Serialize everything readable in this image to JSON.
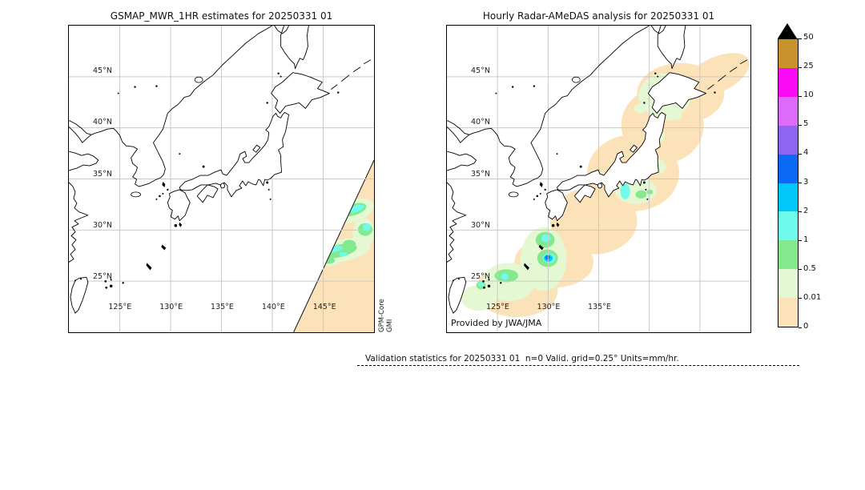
{
  "left_panel": {
    "title": "GSMAP_MWR_1HR estimates for 20250331 01",
    "lat_labels": [
      "45°N",
      "40°N",
      "35°N",
      "30°N",
      "25°N"
    ],
    "lon_labels": [
      "125°E",
      "130°E",
      "135°E",
      "140°E",
      "145°E"
    ],
    "annotation_lines": [
      "GPM-Core",
      "GMI"
    ]
  },
  "right_panel": {
    "title": "Hourly Radar-AMeDAS analysis for 20250331 01",
    "lat_labels": [
      "45°N",
      "40°N",
      "35°N",
      "30°N",
      "25°N"
    ],
    "lon_labels": [
      "125°E",
      "130°E",
      "135°E"
    ],
    "annotation": "Provided by JWA/JMA"
  },
  "colorbar": {
    "units_implied": "mm/hr",
    "tick_labels_top_to_bottom": [
      "50",
      "25",
      "10",
      "5",
      "4",
      "3",
      "2",
      "1",
      "0.5",
      "0.01",
      "0"
    ],
    "segment_colors_top_to_bottom": [
      "#C8922D",
      "#FA0AF5",
      "#DB6BF8",
      "#8E65F0",
      "#0A69F5",
      "#00C8FA",
      "#6EFBEB",
      "#82EA8C",
      "#E4F8D3",
      "#FBE2B8"
    ],
    "overflow_color": "#000000"
  },
  "footer": {
    "text": "Validation statistics for 20250331 01  n=0 Valid. grid=0.25° Units=mm/hr."
  },
  "colors": {
    "grid": "#c9c9c9",
    "coastline": "#000000",
    "rain_trace": "#FBE2B8",
    "rain_light": "#E4F8D3",
    "rain_0p5": "#82EA8C",
    "rain_1": "#6EFBEB",
    "rain_2": "#00C8FA",
    "rain_3": "#0A69F5",
    "swath_edge": "#222222"
  }
}
